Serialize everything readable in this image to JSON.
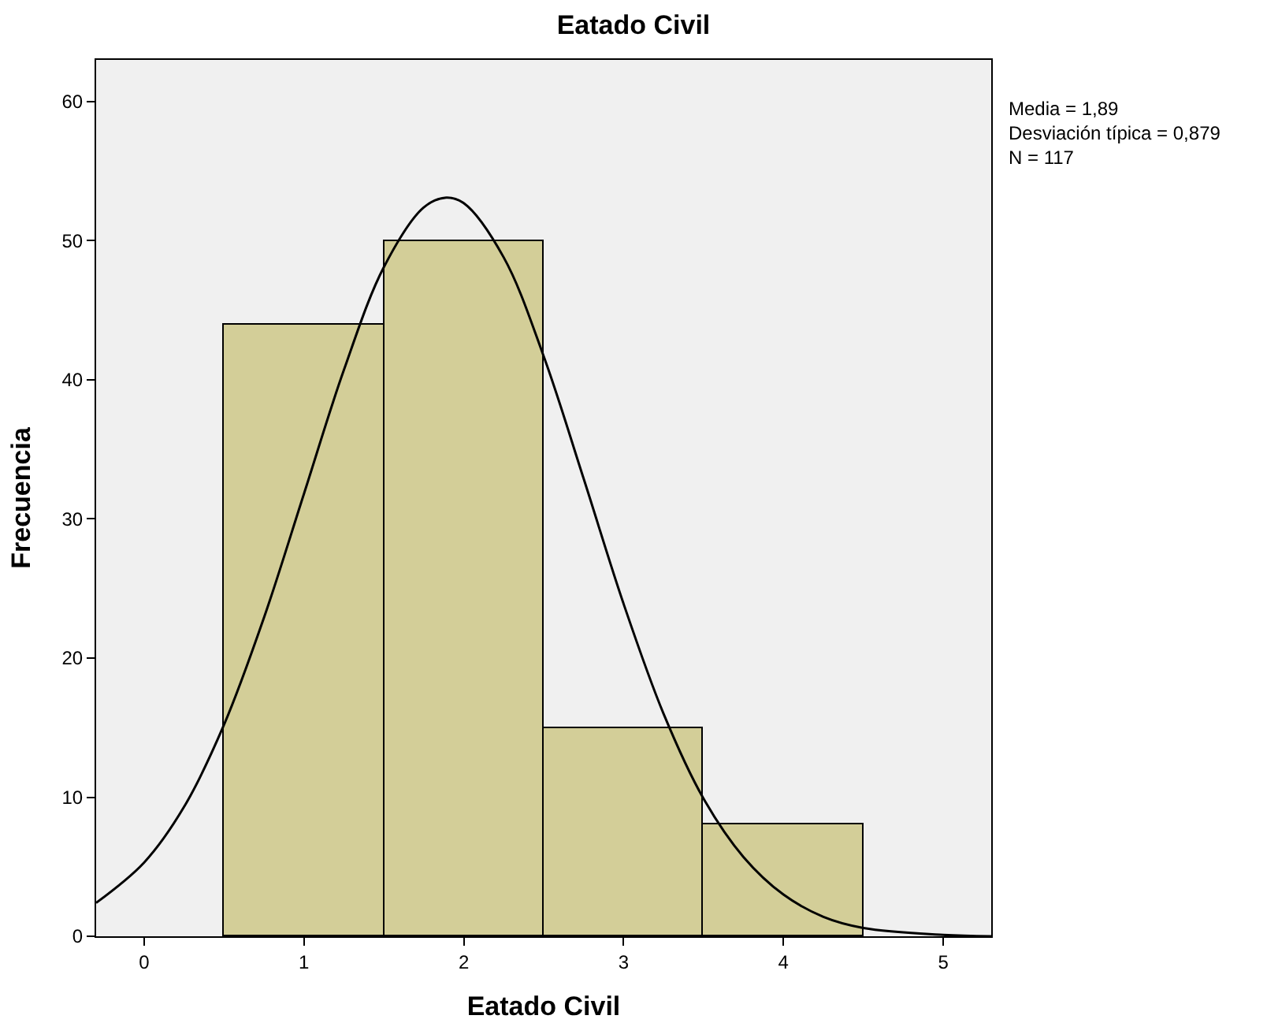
{
  "chart_data": {
    "type": "histogram",
    "title": "Eatado Civil",
    "xlabel": "Eatado Civil",
    "ylabel": "Frecuencia",
    "bins": [
      0.5,
      1.5,
      2.5,
      3.5,
      4.5
    ],
    "values": [
      44,
      50,
      15,
      8
    ],
    "color": "#d3ce98",
    "series": [
      {
        "type": "line",
        "color": "#000000",
        "x": [
          -0.3,
          0,
          0.25,
          0.5,
          0.75,
          1,
          1.25,
          1.5,
          1.75,
          1.89,
          2,
          2.25,
          2.5,
          2.75,
          3,
          3.25,
          3.5,
          3.75,
          4,
          4.25,
          4.5,
          5,
          5.3
        ],
        "values": [
          2.4,
          5.3,
          9.3,
          15.2,
          22.9,
          31.8,
          40.7,
          48.1,
          52.4,
          53.1,
          52.7,
          48.8,
          41.7,
          32.9,
          23.9,
          16.0,
          9.9,
          5.7,
          3.0,
          1.4,
          0.6,
          0.1,
          0.0
        ]
      }
    ],
    "xlim": [
      -0.3,
      5.3
    ],
    "ylim": [
      0,
      63
    ],
    "xticks": [
      0,
      1,
      2,
      3,
      4,
      5
    ],
    "yticks": [
      0,
      10,
      20,
      30,
      40,
      50,
      60
    ],
    "grid": false,
    "annotations": [
      "Media = 1,89\nDesviación típica = 0,879\nN = 117"
    ]
  }
}
